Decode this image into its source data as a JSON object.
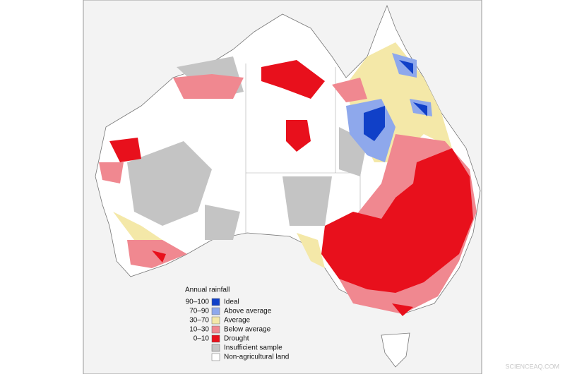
{
  "legend": {
    "title": "Annual rainfall",
    "items": [
      {
        "range": "90–100",
        "label": "Ideal",
        "color": "#1040c8"
      },
      {
        "range": "70–90",
        "label": "Above average",
        "color": "#8ea8ec"
      },
      {
        "range": "30–70",
        "label": "Average",
        "color": "#f4e8a8"
      },
      {
        "range": "10–30",
        "label": "Below average",
        "color": "#f08890"
      },
      {
        "range": "0–10",
        "label": "Drought",
        "color": "#e8101c"
      },
      {
        "range": null,
        "label": "Insufficient sample",
        "color": "#c4c4c4"
      },
      {
        "range": null,
        "label": "Non-agricultural land",
        "color": "#ffffff"
      }
    ]
  },
  "watermark": "SCIENCEAQ.COM"
}
